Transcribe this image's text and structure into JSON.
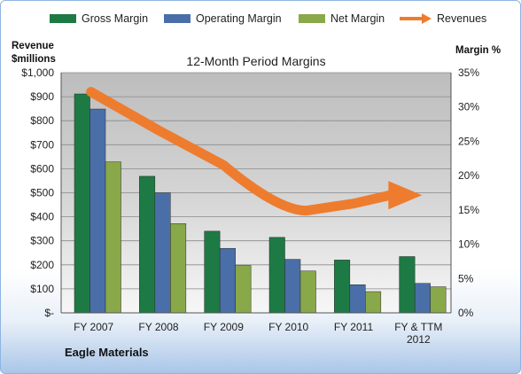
{
  "chart_data": {
    "type": "bar",
    "title": "12-Month Period Margins",
    "company": "Eagle Materials",
    "categories": [
      "FY 2007",
      "FY 2008",
      "FY 2009",
      "FY 2010",
      "FY 2011",
      "FY & TTM\n2012"
    ],
    "left_axis": {
      "label_line1": "Revenue",
      "label_line2": "$millions",
      "ylim": [
        0,
        1000
      ],
      "ticks": [
        0,
        100,
        200,
        300,
        400,
        500,
        600,
        700,
        800,
        900,
        1000
      ],
      "tick_labels": [
        "$-",
        "$100",
        "$200",
        "$300",
        "$400",
        "$500",
        "$600",
        "$700",
        "$800",
        "$900",
        "$1,000"
      ]
    },
    "right_axis": {
      "label": "Margin %",
      "ylim": [
        0,
        35
      ],
      "ticks": [
        0,
        5,
        10,
        15,
        20,
        25,
        30,
        35
      ],
      "tick_labels": [
        "0%",
        "5%",
        "10%",
        "15%",
        "20%",
        "25%",
        "30%",
        "35%"
      ]
    },
    "series": [
      {
        "name": "Gross Margin",
        "kind": "bar",
        "axis": "right",
        "color": "#1e7a44",
        "values": [
          31.9,
          19.9,
          11.9,
          11.0,
          7.7,
          8.2
        ]
      },
      {
        "name": "Operating Margin",
        "kind": "bar",
        "axis": "right",
        "color": "#4a6fa8",
        "values": [
          29.7,
          17.5,
          9.4,
          7.8,
          4.1,
          4.3
        ]
      },
      {
        "name": "Net Margin",
        "kind": "bar",
        "axis": "right",
        "color": "#89a84a",
        "values": [
          22.0,
          13.0,
          6.9,
          6.1,
          3.1,
          3.8
        ]
      },
      {
        "name": "Revenues",
        "kind": "line",
        "axis": "left",
        "color": "#ee7c2e",
        "values": [
          920,
          760,
          615,
          470,
          455,
          490
        ]
      }
    ],
    "legend_position": "top",
    "grid": true
  }
}
